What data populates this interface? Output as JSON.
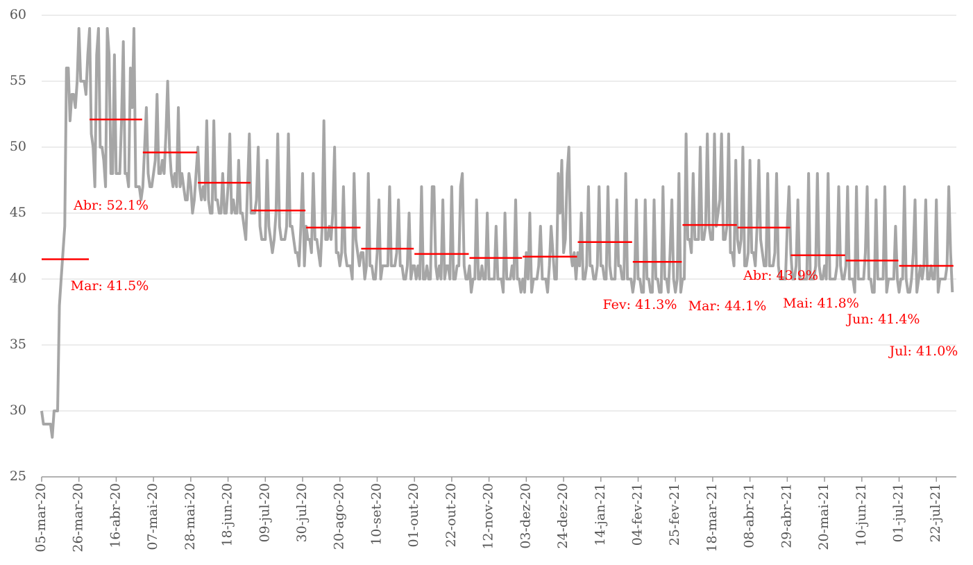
{
  "chart_data": {
    "type": "line",
    "ylim": [
      25,
      60
    ],
    "yticks": [
      25,
      30,
      35,
      40,
      45,
      50,
      55,
      60
    ],
    "grid": true,
    "x": [
      "05-mar-20",
      "06-mar-20",
      "07-mar-20",
      "08-mar-20",
      "09-mar-20",
      "10-mar-20",
      "11-mar-20",
      "12-mar-20",
      "13-mar-20",
      "14-mar-20",
      "15-mar-20",
      "16-mar-20",
      "17-mar-20",
      "18-mar-20",
      "19-mar-20",
      "20-mar-20",
      "21-mar-20",
      "22-mar-20",
      "23-mar-20",
      "24-mar-20",
      "25-mar-20",
      "26-mar-20",
      "27-mar-20",
      "28-mar-20",
      "29-mar-20",
      "30-mar-20",
      "31-mar-20",
      "01-abr-20",
      "02-abr-20",
      "03-abr-20",
      "04-abr-20",
      "05-abr-20",
      "06-abr-20",
      "07-abr-20",
      "08-abr-20",
      "09-abr-20",
      "10-abr-20",
      "11-abr-20",
      "12-abr-20",
      "13-abr-20",
      "14-abr-20",
      "15-abr-20",
      "16-abr-20",
      "17-abr-20",
      "18-abr-20",
      "19-abr-20",
      "20-abr-20",
      "21-abr-20",
      "22-abr-20",
      "23-abr-20",
      "24-abr-20",
      "25-abr-20",
      "26-abr-20",
      "27-abr-20",
      "28-abr-20",
      "29-abr-20",
      "30-abr-20",
      "01-mai-20",
      "02-mai-20",
      "03-mai-20",
      "04-mai-20",
      "05-mai-20",
      "06-mai-20",
      "07-mai-20",
      "08-mai-20",
      "09-mai-20",
      "10-mai-20",
      "11-mai-20",
      "12-mai-20",
      "13-mai-20",
      "14-mai-20",
      "15-mai-20",
      "16-mai-20",
      "17-mai-20",
      "18-mai-20",
      "19-mai-20",
      "20-mai-20",
      "21-mai-20",
      "22-mai-20",
      "23-mai-20",
      "24-mai-20",
      "25-mai-20",
      "26-mai-20",
      "27-mai-20",
      "28-mai-20",
      "29-mai-20",
      "30-mai-20",
      "31-mai-20",
      "01-jun-20",
      "02-jun-20",
      "03-jun-20",
      "04-jun-20",
      "05-jun-20",
      "06-jun-20",
      "07-jun-20",
      "08-jun-20",
      "09-jun-20",
      "10-jun-20",
      "11-jun-20",
      "12-jun-20",
      "13-jun-20",
      "14-jun-20",
      "15-jun-20",
      "16-jun-20",
      "17-jun-20",
      "18-jun-20",
      "19-jun-20",
      "20-jun-20",
      "21-jun-20",
      "22-jun-20",
      "23-jun-20",
      "24-jun-20",
      "25-jun-20",
      "26-jun-20",
      "27-jun-20",
      "28-jun-20",
      "29-jun-20",
      "30-jun-20",
      "01-jul-20",
      "02-jul-20",
      "03-jul-20",
      "04-jul-20",
      "05-jul-20",
      "06-jul-20",
      "07-jul-20",
      "08-jul-20",
      "09-jul-20",
      "10-jul-20",
      "11-jul-20",
      "12-jul-20",
      "13-jul-20",
      "14-jul-20",
      "15-jul-20",
      "16-jul-20",
      "17-jul-20",
      "18-jul-20",
      "19-jul-20",
      "20-jul-20",
      "21-jul-20",
      "22-jul-20",
      "23-jul-20",
      "24-jul-20",
      "25-jul-20",
      "26-jul-20",
      "27-jul-20",
      "28-jul-20",
      "29-jul-20",
      "30-jul-20",
      "31-jul-20",
      "01-ago-20",
      "02-ago-20",
      "03-ago-20",
      "04-ago-20",
      "05-ago-20",
      "06-ago-20",
      "07-ago-20",
      "08-ago-20",
      "09-ago-20",
      "10-ago-20",
      "11-ago-20",
      "12-ago-20",
      "13-ago-20",
      "14-ago-20",
      "15-ago-20",
      "16-ago-20",
      "17-ago-20",
      "18-ago-20",
      "19-ago-20",
      "20-ago-20",
      "21-ago-20",
      "22-ago-20",
      "23-ago-20",
      "24-ago-20",
      "25-ago-20",
      "26-ago-20",
      "27-ago-20",
      "28-ago-20",
      "29-ago-20",
      "30-ago-20",
      "31-ago-20",
      "01-set-20",
      "02-set-20",
      "03-set-20",
      "04-set-20",
      "05-set-20",
      "06-set-20",
      "07-set-20",
      "08-set-20",
      "09-set-20",
      "10-set-20",
      "11-set-20",
      "12-set-20",
      "13-set-20",
      "14-set-20",
      "15-set-20",
      "16-set-20",
      "17-set-20",
      "18-set-20",
      "19-set-20",
      "20-set-20",
      "21-set-20",
      "22-set-20",
      "23-set-20",
      "24-set-20",
      "25-set-20",
      "26-set-20",
      "27-set-20",
      "28-set-20",
      "29-set-20",
      "30-set-20",
      "01-out-20",
      "02-out-20",
      "03-out-20",
      "04-out-20",
      "05-out-20",
      "06-out-20",
      "07-out-20",
      "08-out-20",
      "09-out-20",
      "10-out-20",
      "11-out-20",
      "12-out-20",
      "13-out-20",
      "14-out-20",
      "15-out-20",
      "16-out-20",
      "17-out-20",
      "18-out-20",
      "19-out-20",
      "20-out-20",
      "21-out-20",
      "22-out-20",
      "23-out-20",
      "24-out-20",
      "25-out-20",
      "26-out-20",
      "27-out-20",
      "28-out-20",
      "29-out-20",
      "30-out-20",
      "31-out-20",
      "01-nov-20",
      "02-nov-20",
      "03-nov-20",
      "04-nov-20",
      "05-nov-20",
      "06-nov-20",
      "07-nov-20",
      "08-nov-20",
      "09-nov-20",
      "10-nov-20",
      "11-nov-20",
      "12-nov-20",
      "13-nov-20",
      "14-nov-20",
      "15-nov-20",
      "16-nov-20",
      "17-nov-20",
      "18-nov-20",
      "19-nov-20",
      "20-nov-20",
      "21-nov-20",
      "22-nov-20",
      "23-nov-20",
      "24-nov-20",
      "25-nov-20",
      "26-nov-20",
      "27-nov-20",
      "28-nov-20",
      "29-nov-20",
      "30-nov-20",
      "01-dez-20",
      "02-dez-20",
      "03-dez-20",
      "04-dez-20",
      "05-dez-20",
      "06-dez-20",
      "07-dez-20",
      "08-dez-20",
      "09-dez-20",
      "10-dez-20",
      "11-dez-20",
      "12-dez-20",
      "13-dez-20",
      "14-dez-20",
      "15-dez-20",
      "16-dez-20",
      "17-dez-20",
      "18-dez-20",
      "19-dez-20",
      "20-dez-20",
      "21-dez-20",
      "22-dez-20",
      "23-dez-20",
      "24-dez-20",
      "25-dez-20",
      "26-dez-20",
      "27-dez-20",
      "28-dez-20",
      "29-dez-20",
      "30-dez-20",
      "31-dez-20",
      "01-jan-21",
      "02-jan-21",
      "03-jan-21",
      "04-jan-21",
      "05-jan-21",
      "06-jan-21",
      "07-jan-21",
      "08-jan-21",
      "09-jan-21",
      "10-jan-21",
      "11-jan-21",
      "12-jan-21",
      "13-jan-21",
      "14-jan-21",
      "15-jan-21",
      "16-jan-21",
      "17-jan-21",
      "18-jan-21",
      "19-jan-21",
      "20-jan-21",
      "21-jan-21",
      "22-jan-21",
      "23-jan-21",
      "24-jan-21",
      "25-jan-21",
      "26-jan-21",
      "27-jan-21",
      "28-jan-21",
      "29-jan-21",
      "30-jan-21",
      "31-jan-21",
      "01-fev-21",
      "02-fev-21",
      "03-fev-21",
      "04-fev-21",
      "05-fev-21",
      "06-fev-21",
      "07-fev-21",
      "08-fev-21",
      "09-fev-21",
      "10-fev-21",
      "11-fev-21",
      "12-fev-21",
      "13-fev-21",
      "14-fev-21",
      "15-fev-21",
      "16-fev-21",
      "17-fev-21",
      "18-fev-21",
      "19-fev-21",
      "20-fev-21",
      "21-fev-21",
      "22-fev-21",
      "23-fev-21",
      "24-fev-21",
      "25-fev-21",
      "26-fev-21",
      "27-fev-21",
      "28-fev-21",
      "01-mar-21",
      "02-mar-21",
      "03-mar-21",
      "04-mar-21",
      "05-mar-21",
      "06-mar-21",
      "07-mar-21",
      "08-mar-21",
      "09-mar-21",
      "10-mar-21",
      "11-mar-21",
      "12-mar-21",
      "13-mar-21",
      "14-mar-21",
      "15-mar-21",
      "16-mar-21",
      "17-mar-21",
      "18-mar-21",
      "19-mar-21",
      "20-mar-21",
      "21-mar-21",
      "22-mar-21",
      "23-mar-21",
      "24-mar-21",
      "25-mar-21",
      "26-mar-21",
      "27-mar-21",
      "28-mar-21",
      "29-mar-21",
      "30-mar-21",
      "31-mar-21",
      "01-abr-21",
      "02-abr-21",
      "03-abr-21",
      "04-abr-21",
      "05-abr-21",
      "06-abr-21",
      "07-abr-21",
      "08-abr-21",
      "09-abr-21",
      "10-abr-21",
      "11-abr-21",
      "12-abr-21",
      "13-abr-21",
      "14-abr-21",
      "15-abr-21",
      "16-abr-21",
      "17-abr-21",
      "18-abr-21",
      "19-abr-21",
      "20-abr-21",
      "21-abr-21",
      "22-abr-21",
      "23-abr-21",
      "24-abr-21",
      "25-abr-21",
      "26-abr-21",
      "27-abr-21",
      "28-abr-21",
      "29-abr-21",
      "30-abr-21",
      "01-mai-21",
      "02-mai-21",
      "03-mai-21",
      "04-mai-21",
      "05-mai-21",
      "06-mai-21",
      "07-mai-21",
      "08-mai-21",
      "09-mai-21",
      "10-mai-21",
      "11-mai-21",
      "12-mai-21",
      "13-mai-21",
      "14-mai-21",
      "15-mai-21",
      "16-mai-21",
      "17-mai-21",
      "18-mai-21",
      "19-mai-21",
      "20-mai-21",
      "21-mai-21",
      "22-mai-21",
      "23-mai-21",
      "24-mai-21",
      "25-mai-21",
      "26-mai-21",
      "27-mai-21",
      "28-mai-21",
      "29-mai-21",
      "30-mai-21",
      "31-mai-21",
      "01-jun-21",
      "02-jun-21",
      "03-jun-21",
      "04-jun-21",
      "05-jun-21",
      "06-jun-21",
      "07-jun-21",
      "08-jun-21",
      "09-jun-21",
      "10-jun-21",
      "11-jun-21",
      "12-jun-21",
      "13-jun-21",
      "14-jun-21",
      "15-jun-21",
      "16-jun-21",
      "17-jun-21",
      "18-jun-21",
      "19-jun-21",
      "20-jun-21",
      "21-jun-21",
      "22-jun-21",
      "23-jun-21",
      "24-jun-21",
      "25-jun-21",
      "26-jun-21",
      "27-jun-21",
      "28-jun-21",
      "29-jun-21",
      "30-jun-21",
      "01-jul-21",
      "02-jul-21",
      "03-jul-21",
      "04-jul-21",
      "05-jul-21",
      "06-jul-21",
      "07-jul-21",
      "08-jul-21",
      "09-jul-21",
      "10-jul-21",
      "11-jul-21",
      "12-jul-21",
      "13-jul-21",
      "14-jul-21",
      "15-jul-21",
      "16-jul-21",
      "17-jul-21",
      "18-jul-21",
      "19-jul-21",
      "20-jul-21",
      "21-jul-21",
      "22-jul-21",
      "23-jul-21",
      "24-jul-21",
      "25-jul-21",
      "26-jul-21",
      "27-jul-21",
      "28-jul-21",
      "29-jul-21",
      "30-jul-21",
      "31-jul-21"
    ],
    "xticks": [
      "05-mar-20",
      "26-mar-20",
      "16-abr-20",
      "07-mai-20",
      "28-mai-20",
      "18-jun-20",
      "09-jul-20",
      "30-jul-20",
      "20-ago-20",
      "10-set-20",
      "01-out-20",
      "22-out-20",
      "12-nov-20",
      "03-dez-20",
      "24-dez-20",
      "14-jan-21",
      "04-fev-21",
      "25-fev-21",
      "18-mar-21",
      "08-abr-21",
      "29-abr-21",
      "20-mai-21",
      "10-jun-21",
      "01-jul-21",
      "22-jul-21"
    ],
    "series": [
      {
        "color": "#a6a6a6",
        "values": [
          30,
          29,
          29,
          29,
          29,
          29,
          28,
          30,
          30,
          30,
          38,
          40,
          42,
          44,
          56,
          56,
          52,
          54,
          54,
          53,
          55,
          59,
          55,
          55,
          55,
          54,
          57,
          59,
          51,
          50,
          47,
          57,
          59,
          50,
          50,
          49,
          47,
          59,
          57,
          48,
          48,
          57,
          48,
          48,
          48,
          52,
          58,
          48,
          48,
          47,
          56,
          53,
          59,
          47,
          47,
          47,
          46,
          47,
          50,
          53,
          48,
          47,
          47,
          48,
          49,
          54,
          48,
          48,
          49,
          48,
          51,
          55,
          50,
          48,
          47,
          48,
          47,
          53,
          47,
          48,
          47,
          46,
          46,
          48,
          47,
          45,
          46,
          48,
          50,
          47,
          46,
          47,
          46,
          52,
          46,
          45,
          45,
          52,
          46,
          46,
          45,
          45,
          48,
          45,
          45,
          47,
          51,
          45,
          46,
          45,
          45,
          49,
          45,
          45,
          44,
          43,
          47,
          51,
          45,
          45,
          45,
          46,
          50,
          44,
          43,
          43,
          43,
          49,
          44,
          43,
          42,
          43,
          45,
          51,
          44,
          43,
          43,
          43,
          44,
          51,
          44,
          44,
          43,
          42,
          42,
          41,
          44,
          48,
          41,
          44,
          43,
          43,
          42,
          48,
          43,
          43,
          42,
          41,
          44,
          52,
          43,
          43,
          44,
          43,
          45,
          50,
          42,
          42,
          41,
          42,
          47,
          42,
          41,
          41,
          41,
          40,
          48,
          43,
          42,
          41,
          42,
          42,
          40,
          41,
          48,
          41,
          41,
          40,
          40,
          42,
          46,
          40,
          41,
          41,
          41,
          41,
          47,
          41,
          41,
          41,
          42,
          46,
          41,
          41,
          40,
          40,
          41,
          45,
          40,
          41,
          41,
          40,
          41,
          40,
          47,
          40,
          40,
          41,
          40,
          40,
          47,
          47,
          41,
          40,
          41,
          40,
          46,
          40,
          41,
          41,
          40,
          47,
          40,
          40,
          41,
          41,
          47,
          48,
          41,
          40,
          40,
          41,
          39,
          40,
          40,
          46,
          40,
          40,
          41,
          40,
          40,
          45,
          40,
          40,
          40,
          40,
          44,
          40,
          40,
          40,
          39,
          45,
          40,
          40,
          40,
          41,
          40,
          46,
          40,
          40,
          39,
          40,
          39,
          42,
          40,
          45,
          39,
          40,
          40,
          40,
          41,
          44,
          40,
          40,
          40,
          39,
          41,
          44,
          42,
          40,
          40,
          48,
          45,
          49,
          42,
          43,
          48,
          50,
          42,
          41,
          42,
          40,
          42,
          41,
          45,
          40,
          40,
          41,
          47,
          41,
          41,
          40,
          40,
          41,
          47,
          41,
          41,
          40,
          40,
          47,
          41,
          40,
          40,
          40,
          46,
          41,
          41,
          40,
          40,
          48,
          40,
          40,
          40,
          39,
          40,
          46,
          40,
          40,
          39,
          39,
          46,
          40,
          40,
          39,
          39,
          46,
          40,
          40,
          39,
          39,
          47,
          40,
          40,
          39,
          42,
          46,
          40,
          39,
          40,
          48,
          39,
          40,
          40,
          51,
          43,
          43,
          42,
          48,
          43,
          43,
          43,
          50,
          43,
          43,
          44,
          51,
          44,
          43,
          43,
          51,
          44,
          45,
          46,
          51,
          43,
          43,
          44,
          51,
          42,
          42,
          41,
          49,
          43,
          42,
          43,
          50,
          41,
          41,
          42,
          49,
          42,
          42,
          41,
          44,
          49,
          43,
          42,
          41,
          41,
          48,
          41,
          41,
          41,
          42,
          48,
          41,
          40,
          40,
          40,
          40,
          44,
          47,
          42,
          40,
          40,
          41,
          46,
          40,
          40,
          40,
          40,
          40,
          48,
          40,
          40,
          40,
          41,
          48,
          41,
          40,
          40,
          41,
          40,
          48,
          40,
          40,
          40,
          40,
          41,
          47,
          41,
          40,
          40,
          41,
          47,
          40,
          40,
          40,
          39,
          47,
          40,
          40,
          40,
          40,
          42,
          47,
          40,
          40,
          39,
          39,
          46,
          40,
          40,
          40,
          40,
          47,
          39,
          40,
          40,
          40,
          40,
          44,
          40,
          39,
          40,
          40,
          47,
          40,
          39,
          39,
          40,
          42,
          46,
          39,
          40,
          41,
          40,
          41,
          46,
          40,
          40,
          41,
          40,
          40,
          46,
          39,
          40,
          40,
          40,
          40,
          41,
          47,
          42,
          39
        ]
      }
    ],
    "monthly_averages": {
      "color": "#ff0000",
      "values": [
        41.5,
        52.1,
        49.6,
        47.3,
        45.2,
        43.9,
        42.3,
        41.9,
        41.6,
        41.7,
        42.8,
        41.3,
        44.1,
        43.9,
        41.8,
        41.4,
        41.0
      ],
      "value_labels": [
        "Mar: 41.5%",
        "Abr: 52.1%",
        null,
        null,
        null,
        null,
        null,
        null,
        null,
        null,
        null,
        "Fev: 41.3%",
        "Mar: 44.1%",
        "Abr: 43.9%",
        "Mai: 41.8%",
        "Jun: 41.4%",
        "Jul: 41.0%"
      ]
    }
  }
}
